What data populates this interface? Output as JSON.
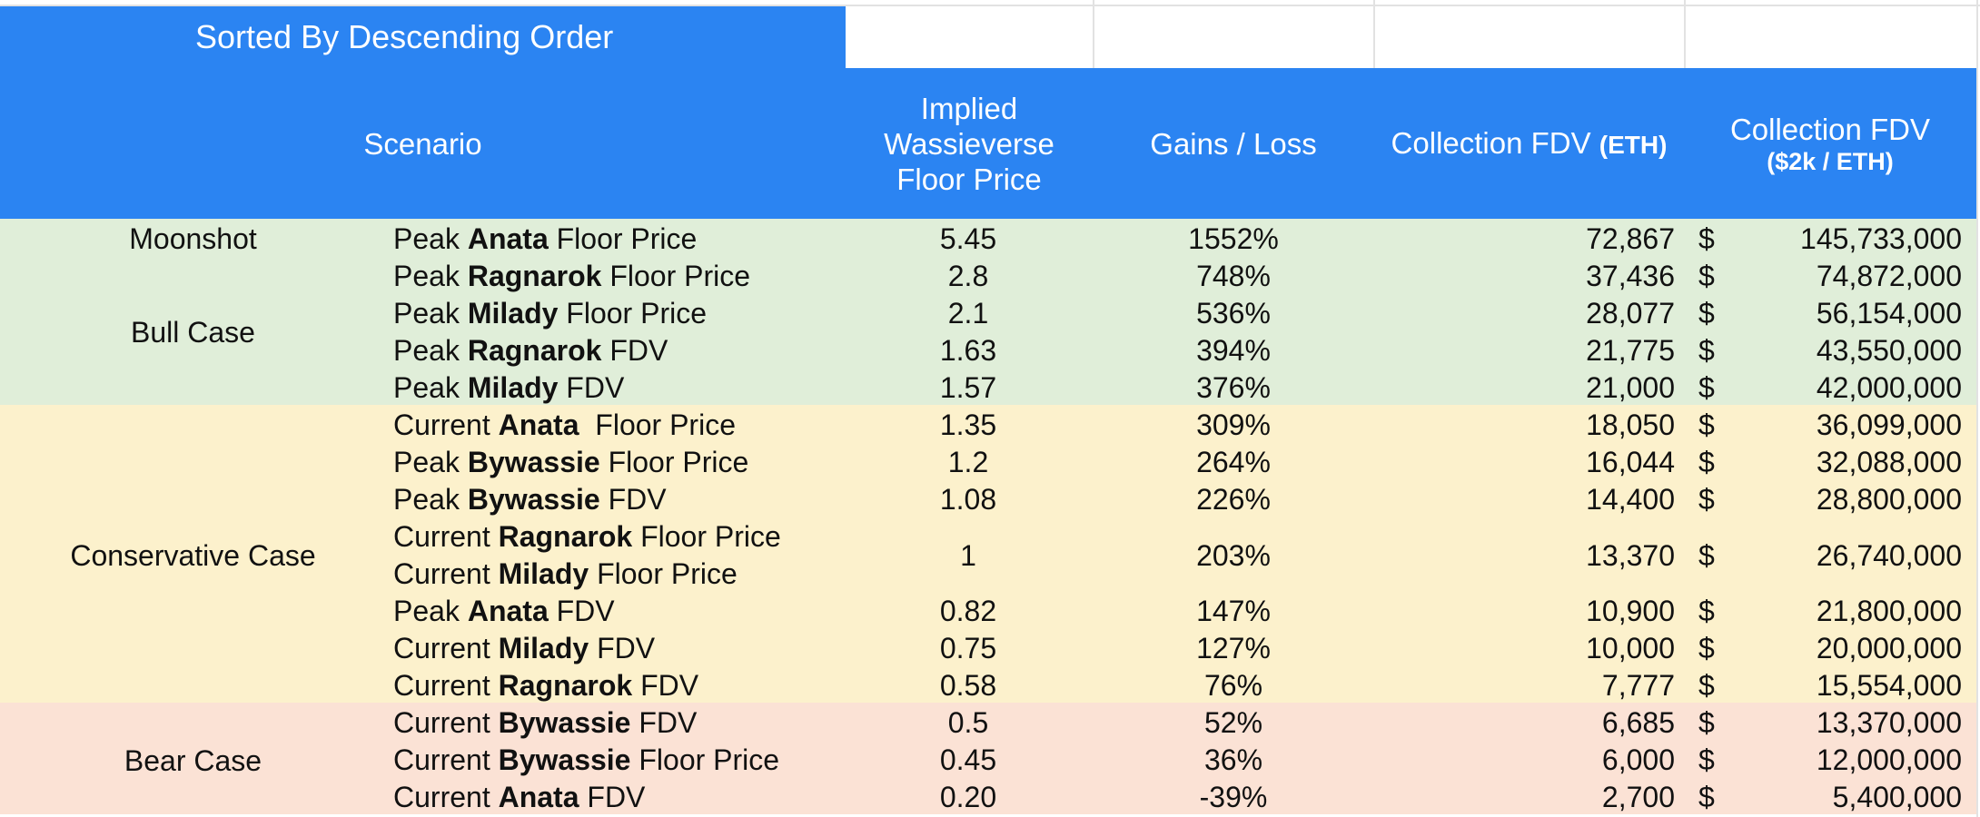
{
  "sheet": {
    "title": "Sorted By Descending Order",
    "headers": {
      "scenario": "Scenario",
      "floor_price": [
        "Implied",
        "Wassieverse",
        "Floor Price"
      ],
      "gains_loss": "Gains / Loss",
      "fdv_eth_main": "Collection FDV",
      "fdv_eth_unit": "(ETH)",
      "fdv_usd_main": "Collection FDV",
      "fdv_usd_unit": "($2k / ETH)"
    },
    "cases": {
      "moonshot": "Moonshot",
      "bull": "Bull Case",
      "conservative": "Conservative Case",
      "bear": "Bear Case"
    },
    "currency_symbol": "$",
    "rows": [
      {
        "prefix": "Peak",
        "name": "Anata",
        "suffix": "Floor Price",
        "floor": "5.45",
        "gains": "1552%",
        "fdv_eth": "72,867",
        "fdv_usd": "145,733,000"
      },
      {
        "prefix": "Peak",
        "name": "Ragnarok",
        "suffix": "Floor Price",
        "floor": "2.8",
        "gains": "748%",
        "fdv_eth": "37,436",
        "fdv_usd": "74,872,000"
      },
      {
        "prefix": "Peak",
        "name": "Milady",
        "suffix": "Floor Price",
        "floor": "2.1",
        "gains": "536%",
        "fdv_eth": "28,077",
        "fdv_usd": "56,154,000"
      },
      {
        "prefix": "Peak",
        "name": "Ragnarok",
        "suffix": "FDV",
        "floor": "1.63",
        "gains": "394%",
        "fdv_eth": "21,775",
        "fdv_usd": "43,550,000"
      },
      {
        "prefix": "Peak",
        "name": "Milady",
        "suffix": "FDV",
        "floor": "1.57",
        "gains": "376%",
        "fdv_eth": "21,000",
        "fdv_usd": "42,000,000"
      },
      {
        "prefix": "Current",
        "name": "Anata",
        "suffix": " Floor Price",
        "floor": "1.35",
        "gains": "309%",
        "fdv_eth": "18,050",
        "fdv_usd": "36,099,000"
      },
      {
        "prefix": "Peak",
        "name": "Bywassie",
        "suffix": "Floor Price",
        "floor": "1.2",
        "gains": "264%",
        "fdv_eth": "16,044",
        "fdv_usd": "32,088,000"
      },
      {
        "prefix": "Peak",
        "name": "Bywassie",
        "suffix": "FDV",
        "floor": "1.08",
        "gains": "226%",
        "fdv_eth": "14,400",
        "fdv_usd": "28,800,000"
      },
      {
        "prefix": "Current",
        "name": "Ragnarok",
        "suffix": "Floor Price",
        "prefix2": "Current",
        "name2": "Milady",
        "suffix2": "Floor Price",
        "floor": "1",
        "gains": "203%",
        "fdv_eth": "13,370",
        "fdv_usd": "26,740,000"
      },
      {
        "prefix": "Peak",
        "name": "Anata",
        "suffix": "FDV",
        "floor": "0.82",
        "gains": "147%",
        "fdv_eth": "10,900",
        "fdv_usd": "21,800,000"
      },
      {
        "prefix": "Current",
        "name": "Milady",
        "suffix": "FDV",
        "floor": "0.75",
        "gains": "127%",
        "fdv_eth": "10,000",
        "fdv_usd": "20,000,000"
      },
      {
        "prefix": "Current",
        "name": "Ragnarok",
        "suffix": "FDV",
        "floor": "0.58",
        "gains": "76%",
        "fdv_eth": "7,777",
        "fdv_usd": "15,554,000"
      },
      {
        "prefix": "Current",
        "name": "Bywassie",
        "suffix": "FDV",
        "floor": "0.5",
        "gains": "52%",
        "fdv_eth": "6,685",
        "fdv_usd": "13,370,000"
      },
      {
        "prefix": "Current",
        "name": "Bywassie",
        "suffix": "Floor Price",
        "floor": "0.45",
        "gains": "36%",
        "fdv_eth": "6,000",
        "fdv_usd": "12,000,000"
      },
      {
        "prefix": "Current",
        "name": "Anata",
        "suffix": "FDV",
        "floor": "0.20",
        "gains": "-39%",
        "fdv_eth": "2,700",
        "fdv_usd": "5,400,000"
      }
    ]
  },
  "colors": {
    "header_blue": "#2b84f2",
    "bull_green": "#e0eed9",
    "conservative_yellow": "#fcf1cc",
    "bear_red": "#fbe2d5"
  }
}
